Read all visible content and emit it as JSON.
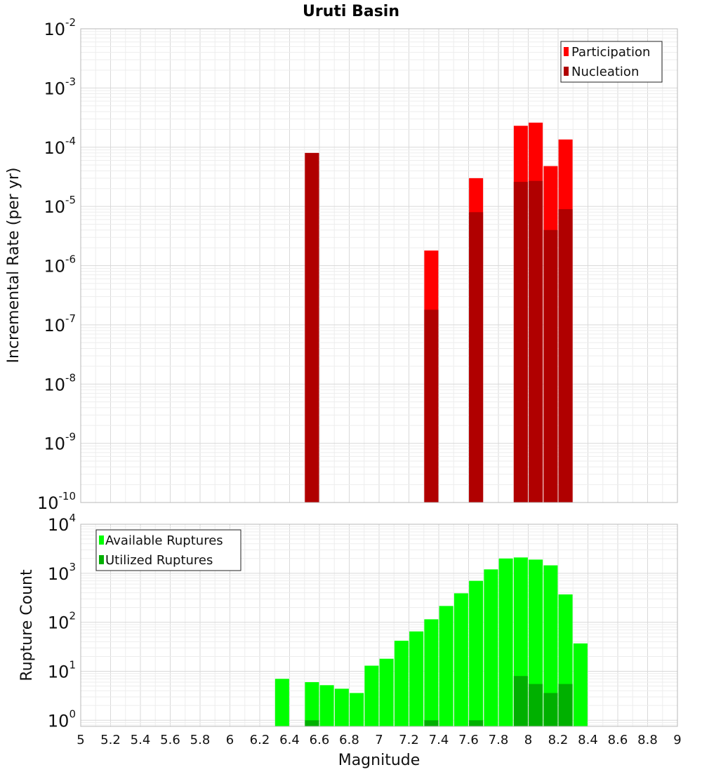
{
  "chart_data": [
    {
      "type": "bar",
      "title": "Uruti Basin",
      "ylabel": "Incremental Rate (per yr)",
      "xlabel": "",
      "xlim": [
        5,
        9
      ],
      "ylim": [
        1e-10,
        0.01
      ],
      "yscale": "log",
      "grid": true,
      "legend_position": "top-right",
      "y_ticks": [
        {
          "base": "10",
          "exp": "-10",
          "value": 1e-10
        },
        {
          "base": "10",
          "exp": "-9",
          "value": 1e-09
        },
        {
          "base": "10",
          "exp": "-8",
          "value": 1e-08
        },
        {
          "base": "10",
          "exp": "-7",
          "value": 1e-07
        },
        {
          "base": "10",
          "exp": "-6",
          "value": 1e-06
        },
        {
          "base": "10",
          "exp": "-5",
          "value": 1e-05
        },
        {
          "base": "10",
          "exp": "-4",
          "value": 0.0001
        },
        {
          "base": "10",
          "exp": "-3",
          "value": 0.001
        },
        {
          "base": "10",
          "exp": "-2",
          "value": 0.01
        }
      ],
      "series": [
        {
          "name": "Participation",
          "color": "#ff0000",
          "points": [
            {
              "x": 6.55,
              "y": 8e-05
            },
            {
              "x": 7.35,
              "y": 1.8e-06
            },
            {
              "x": 7.65,
              "y": 3e-05
            },
            {
              "x": 7.95,
              "y": 0.00023
            },
            {
              "x": 8.05,
              "y": 0.00026
            },
            {
              "x": 8.15,
              "y": 4.8e-05
            },
            {
              "x": 8.25,
              "y": 0.000135
            }
          ]
        },
        {
          "name": "Nucleation",
          "color": "#b00000",
          "points": [
            {
              "x": 6.55,
              "y": 8e-05
            },
            {
              "x": 7.35,
              "y": 1.8e-07
            },
            {
              "x": 7.65,
              "y": 8e-06
            },
            {
              "x": 7.95,
              "y": 2.6e-05
            },
            {
              "x": 8.05,
              "y": 2.7e-05
            },
            {
              "x": 8.15,
              "y": 4e-06
            },
            {
              "x": 8.25,
              "y": 9e-06
            }
          ]
        }
      ]
    },
    {
      "type": "bar",
      "ylabel": "Rupture Count",
      "xlabel": "Magnitude",
      "xlim": [
        5,
        9
      ],
      "ylim": [
        0.75,
        10000
      ],
      "yscale": "log",
      "grid": true,
      "legend_position": "top-left",
      "y_ticks": [
        {
          "base": "10",
          "exp": "0",
          "value": 1
        },
        {
          "base": "10",
          "exp": "1",
          "value": 10
        },
        {
          "base": "10",
          "exp": "2",
          "value": 100
        },
        {
          "base": "10",
          "exp": "3",
          "value": 1000
        },
        {
          "base": "10",
          "exp": "4",
          "value": 10000
        }
      ],
      "x_ticks": [
        "5",
        "5.2",
        "5.4",
        "5.6",
        "5.8",
        "6",
        "6.2",
        "6.4",
        "6.6",
        "6.8",
        "7",
        "7.2",
        "7.4",
        "7.6",
        "7.8",
        "8",
        "8.2",
        "8.4",
        "8.6",
        "8.8",
        "9"
      ],
      "series": [
        {
          "name": "Available Ruptures",
          "color": "#00ff00",
          "points": [
            {
              "x": 6.35,
              "y": 7
            },
            {
              "x": 6.55,
              "y": 6
            },
            {
              "x": 6.65,
              "y": 5.2
            },
            {
              "x": 6.75,
              "y": 4.4
            },
            {
              "x": 6.85,
              "y": 3.6
            },
            {
              "x": 6.95,
              "y": 13
            },
            {
              "x": 7.05,
              "y": 18
            },
            {
              "x": 7.15,
              "y": 42
            },
            {
              "x": 7.25,
              "y": 65
            },
            {
              "x": 7.35,
              "y": 115
            },
            {
              "x": 7.45,
              "y": 215
            },
            {
              "x": 7.55,
              "y": 390
            },
            {
              "x": 7.65,
              "y": 700
            },
            {
              "x": 7.75,
              "y": 1200
            },
            {
              "x": 7.85,
              "y": 2000
            },
            {
              "x": 7.95,
              "y": 2100
            },
            {
              "x": 8.05,
              "y": 1900
            },
            {
              "x": 8.15,
              "y": 1450
            },
            {
              "x": 8.25,
              "y": 370
            },
            {
              "x": 8.35,
              "y": 37
            }
          ]
        },
        {
          "name": "Utilized Ruptures",
          "color": "#00b000",
          "points": [
            {
              "x": 6.55,
              "y": 1
            },
            {
              "x": 7.35,
              "y": 1
            },
            {
              "x": 7.65,
              "y": 1
            },
            {
              "x": 7.95,
              "y": 8
            },
            {
              "x": 8.05,
              "y": 5.5
            },
            {
              "x": 8.15,
              "y": 3.6
            },
            {
              "x": 8.25,
              "y": 5.5
            }
          ]
        }
      ]
    }
  ]
}
